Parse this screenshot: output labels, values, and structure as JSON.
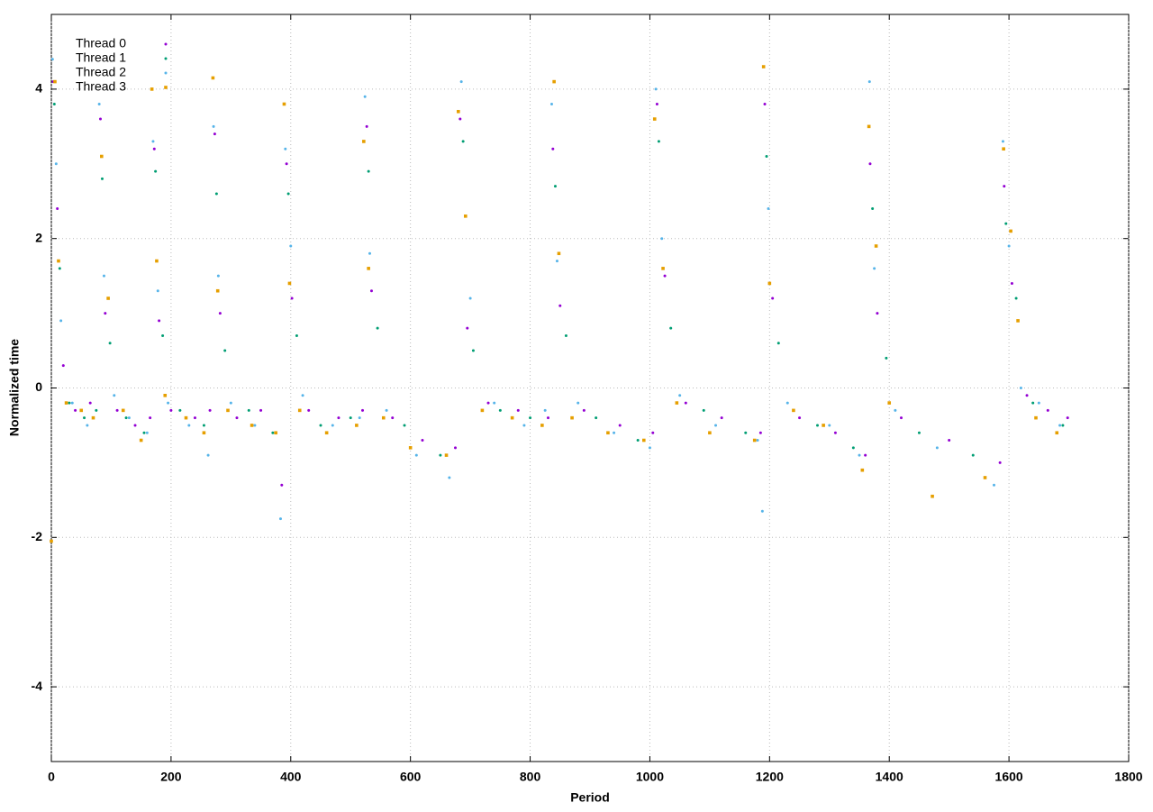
{
  "chart_data": {
    "type": "scatter",
    "x_label": "Period",
    "y_label": "Normalized time",
    "xlim": [
      0,
      1800
    ],
    "ylim": [
      -5,
      5
    ],
    "xticks": [
      0,
      200,
      400,
      600,
      800,
      1000,
      1200,
      1400,
      1600,
      1800
    ],
    "yticks": [
      -4,
      -2,
      0,
      2,
      4
    ],
    "grid": true,
    "legend": "top-left",
    "series": [
      {
        "name": "Thread 0",
        "color": "#9400d3",
        "marker": "dot",
        "x": [
          3,
          10,
          20,
          40,
          65,
          82,
          90,
          110,
          140,
          165,
          172,
          180,
          200,
          240,
          265,
          273,
          282,
          310,
          350,
          385,
          393,
          402,
          430,
          480,
          520,
          527,
          535,
          570,
          620,
          675,
          683,
          695,
          730,
          780,
          830,
          838,
          850,
          890,
          950,
          1005,
          1012,
          1025,
          1060,
          1120,
          1185,
          1192,
          1205,
          1250,
          1310,
          1360,
          1368,
          1380,
          1420,
          1500,
          1585,
          1592,
          1605,
          1630,
          1665,
          1698
        ],
        "values": [
          4.1,
          2.4,
          0.3,
          -0.3,
          -0.2,
          3.6,
          1.0,
          -0.3,
          -0.5,
          -0.4,
          3.2,
          0.9,
          -0.3,
          -0.4,
          -0.3,
          3.4,
          1.0,
          -0.4,
          -0.3,
          -1.3,
          3.0,
          1.2,
          -0.3,
          -0.4,
          -0.3,
          3.5,
          1.3,
          -0.4,
          -0.7,
          -0.8,
          3.6,
          0.8,
          -0.2,
          -0.3,
          -0.4,
          3.2,
          1.1,
          -0.3,
          -0.5,
          -0.6,
          3.8,
          1.5,
          -0.2,
          -0.4,
          -0.6,
          3.8,
          1.2,
          -0.4,
          -0.6,
          -0.9,
          3.0,
          1.0,
          -0.4,
          -0.7,
          -1.0,
          2.7,
          1.4,
          -0.1,
          -0.3,
          -0.4
        ]
      },
      {
        "name": "Thread 1",
        "color": "#009e73",
        "marker": "dot",
        "x": [
          5,
          14,
          30,
          55,
          75,
          85,
          98,
          125,
          155,
          174,
          186,
          215,
          255,
          276,
          290,
          330,
          370,
          396,
          410,
          450,
          500,
          530,
          545,
          590,
          650,
          688,
          705,
          750,
          800,
          842,
          860,
          910,
          980,
          1015,
          1035,
          1090,
          1160,
          1195,
          1215,
          1280,
          1340,
          1372,
          1395,
          1450,
          1540,
          1595,
          1612,
          1640,
          1690
        ],
        "values": [
          3.8,
          1.6,
          -0.2,
          -0.4,
          -0.3,
          2.8,
          0.6,
          -0.4,
          -0.6,
          2.9,
          0.7,
          -0.3,
          -0.5,
          2.6,
          0.5,
          -0.3,
          -0.6,
          2.6,
          0.7,
          -0.5,
          -0.4,
          2.9,
          0.8,
          -0.5,
          -0.9,
          3.3,
          0.5,
          -0.3,
          -0.4,
          2.7,
          0.7,
          -0.4,
          -0.7,
          3.3,
          0.8,
          -0.3,
          -0.6,
          3.1,
          0.6,
          -0.5,
          -0.8,
          2.4,
          0.4,
          -0.6,
          -0.9,
          2.2,
          1.2,
          -0.2,
          -0.5
        ]
      },
      {
        "name": "Thread 2",
        "color": "#56b4e9",
        "marker": "dot",
        "x": [
          2,
          8,
          16,
          35,
          60,
          80,
          88,
          105,
          130,
          160,
          170,
          178,
          195,
          230,
          262,
          271,
          279,
          300,
          340,
          383,
          391,
          400,
          420,
          470,
          515,
          524,
          532,
          560,
          610,
          665,
          685,
          700,
          740,
          790,
          825,
          836,
          845,
          880,
          940,
          1000,
          1010,
          1020,
          1050,
          1110,
          1180,
          1188,
          1198,
          1230,
          1300,
          1350,
          1367,
          1375,
          1410,
          1480,
          1575,
          1590,
          1600,
          1620,
          1650,
          1685
        ],
        "values": [
          4.4,
          3.0,
          0.9,
          -0.2,
          -0.5,
          3.8,
          1.5,
          -0.1,
          -0.4,
          -0.6,
          3.3,
          1.3,
          -0.2,
          -0.5,
          -0.9,
          3.5,
          1.5,
          -0.2,
          -0.5,
          -1.75,
          3.2,
          1.9,
          -0.1,
          -0.5,
          -0.4,
          3.9,
          1.8,
          -0.3,
          -0.9,
          -1.2,
          4.1,
          1.2,
          -0.2,
          -0.5,
          -0.3,
          3.8,
          1.7,
          -0.2,
          -0.6,
          -0.8,
          4.0,
          2.0,
          -0.1,
          -0.5,
          -0.7,
          -1.65,
          2.4,
          -0.2,
          -0.5,
          -0.9,
          4.1,
          1.6,
          -0.3,
          -0.8,
          -1.3,
          3.3,
          1.9,
          0.0,
          -0.2,
          -0.5
        ]
      },
      {
        "name": "Thread 3",
        "color": "#e69f00",
        "marker": "square",
        "x": [
          0,
          6,
          12,
          25,
          50,
          70,
          84,
          95,
          120,
          150,
          168,
          176,
          190,
          225,
          255,
          270,
          278,
          295,
          335,
          375,
          389,
          398,
          415,
          460,
          510,
          522,
          530,
          555,
          600,
          660,
          680,
          692,
          720,
          770,
          820,
          840,
          848,
          870,
          930,
          990,
          1008,
          1022,
          1045,
          1100,
          1175,
          1190,
          1200,
          1240,
          1290,
          1355,
          1366,
          1378,
          1400,
          1472,
          1560,
          1591,
          1603,
          1615,
          1645,
          1680
        ],
        "values": [
          -2.05,
          4.1,
          1.7,
          -0.2,
          -0.3,
          -0.4,
          3.1,
          1.2,
          -0.3,
          -0.7,
          4.0,
          1.7,
          -0.1,
          -0.4,
          -0.6,
          4.15,
          1.3,
          -0.3,
          -0.5,
          -0.6,
          3.8,
          1.4,
          -0.3,
          -0.6,
          -0.5,
          3.3,
          1.6,
          -0.4,
          -0.8,
          -0.9,
          3.7,
          2.3,
          -0.3,
          -0.4,
          -0.5,
          4.1,
          1.8,
          -0.4,
          -0.6,
          -0.7,
          3.6,
          1.6,
          -0.2,
          -0.6,
          -0.7,
          4.3,
          1.4,
          -0.3,
          -0.5,
          -1.1,
          3.5,
          1.9,
          -0.2,
          -1.45,
          -1.2,
          3.2,
          2.1,
          0.9,
          -0.4,
          -0.6
        ]
      }
    ]
  }
}
